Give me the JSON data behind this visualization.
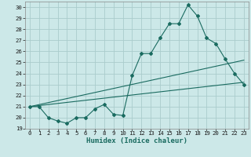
{
  "xlabel": "Humidex (Indice chaleur)",
  "background_color": "#cce8e8",
  "grid_color": "#aacccc",
  "line_color": "#1a6b60",
  "xlim": [
    -0.5,
    23.5
  ],
  "ylim": [
    19,
    30.5
  ],
  "yticks": [
    19,
    20,
    21,
    22,
    23,
    24,
    25,
    26,
    27,
    28,
    29,
    30
  ],
  "xticks": [
    0,
    1,
    2,
    3,
    4,
    5,
    6,
    7,
    8,
    9,
    10,
    11,
    12,
    13,
    14,
    15,
    16,
    17,
    18,
    19,
    20,
    21,
    22,
    23
  ],
  "series1_x": [
    0,
    1,
    2,
    3,
    4,
    5,
    6,
    7,
    8,
    9,
    10,
    11,
    12,
    13,
    14,
    15,
    16,
    17,
    18,
    19,
    20,
    21,
    22,
    23
  ],
  "series1_y": [
    21.0,
    21.0,
    20.0,
    19.7,
    19.5,
    20.0,
    20.0,
    20.8,
    21.2,
    20.3,
    20.2,
    23.8,
    25.8,
    25.8,
    27.2,
    28.5,
    28.5,
    30.2,
    29.2,
    27.2,
    26.7,
    25.3,
    24.0,
    23.0
  ],
  "series2_x": [
    0,
    23
  ],
  "series2_y": [
    21.0,
    23.2
  ],
  "series3_x": [
    0,
    23
  ],
  "series3_y": [
    21.0,
    25.2
  ],
  "tick_fontsize": 5.2,
  "xlabel_fontsize": 6.5
}
